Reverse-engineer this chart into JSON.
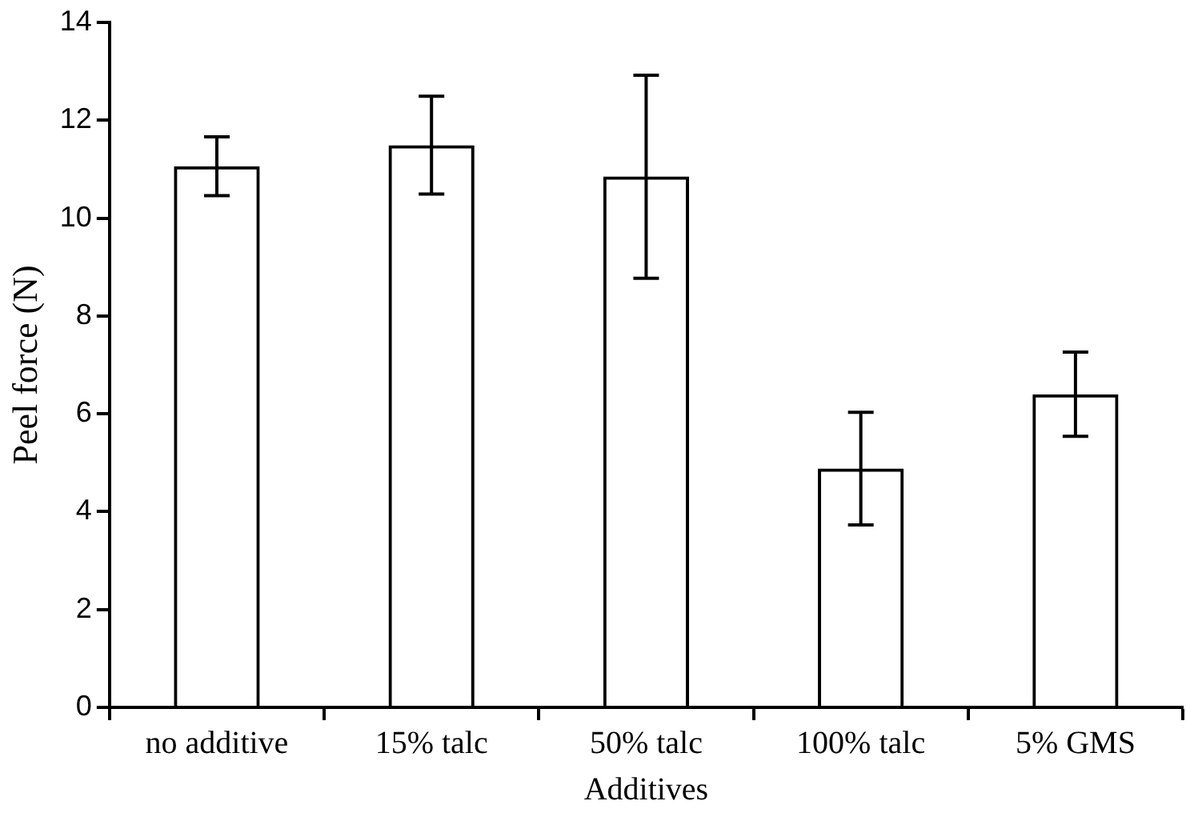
{
  "chart_data": {
    "type": "bar",
    "xlabel": "Additives",
    "ylabel": "Peel force (N)",
    "categories": [
      "no additive",
      "15% talc",
      "50% talc",
      "100% talc",
      "5% GMS"
    ],
    "values": [
      11.06,
      11.49,
      10.85,
      4.88,
      6.4
    ],
    "errors": [
      0.6,
      1.0,
      [
        8.77,
        12.92
      ],
      1.15,
      0.86
    ],
    "color": "#000000",
    "ylim": [
      0,
      14
    ],
    "yticks": [
      0,
      2,
      4,
      6,
      8,
      10,
      12,
      14
    ],
    "grid": false,
    "legend": false
  }
}
